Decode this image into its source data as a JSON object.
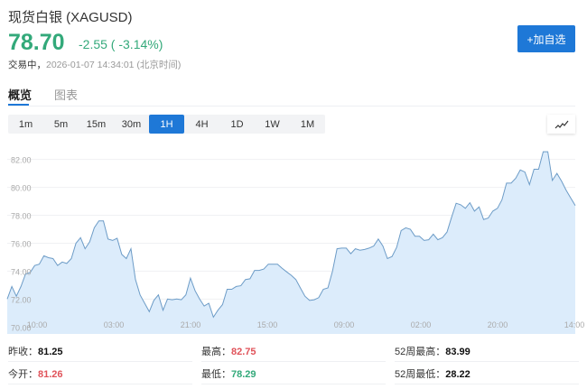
{
  "header": {
    "title": "现货白银 (XAGUSD)",
    "price": "78.70",
    "change": "-2.55 ( -3.14%)",
    "status_label": "交易中，",
    "timestamp": "2026-01-07 14:34:01 (北京时间)",
    "add_button": "+加自选"
  },
  "tabs": [
    {
      "label": "概览",
      "active": true
    },
    {
      "label": "图表",
      "active": false
    }
  ],
  "intervals": [
    {
      "label": "1m"
    },
    {
      "label": "5m"
    },
    {
      "label": "15m"
    },
    {
      "label": "30m"
    },
    {
      "label": "1H",
      "active": true
    },
    {
      "label": "4H"
    },
    {
      "label": "1D"
    },
    {
      "label": "1W"
    },
    {
      "label": "1M"
    }
  ],
  "colors": {
    "accent": "#1e78d7",
    "up": "#e0535a",
    "down": "#33a97a",
    "line": "#6d9cc7",
    "fill": "#dcecfb"
  },
  "chart_icon": "line-chart-icon",
  "chart_data": {
    "type": "area",
    "ylim": [
      69.5,
      83.4
    ],
    "y_ticks": [
      "70.00",
      "72.00",
      "74.00",
      "76.00",
      "78.00",
      "80.00",
      "82.00"
    ],
    "x_ticks": [
      "10:00",
      "03:00",
      "21:00",
      "15:00",
      "09:00",
      "02:00",
      "20:00",
      "14:00"
    ],
    "grid": true,
    "values": [
      72.0,
      72.9,
      72.2,
      72.9,
      73.8,
      73.9,
      74.4,
      74.5,
      75.1,
      74.96,
      74.9,
      74.4,
      74.65,
      74.55,
      74.9,
      76.0,
      76.4,
      75.6,
      76.1,
      77.1,
      77.6,
      77.6,
      76.3,
      76.2,
      76.35,
      75.2,
      74.9,
      75.6,
      73.4,
      72.3,
      71.7,
      71.1,
      71.9,
      72.3,
      71.2,
      72.0,
      71.95,
      72.0,
      71.95,
      72.3,
      73.5,
      72.6,
      72.0,
      71.5,
      71.7,
      70.7,
      71.2,
      71.6,
      72.7,
      72.7,
      72.9,
      72.95,
      73.4,
      73.45,
      74.05,
      74.05,
      74.15,
      74.5,
      74.5,
      74.5,
      74.2,
      73.95,
      73.7,
      73.4,
      72.8,
      72.2,
      71.9,
      71.95,
      72.1,
      72.7,
      72.8,
      74.0,
      75.6,
      75.65,
      75.65,
      75.25,
      75.6,
      75.5,
      75.55,
      75.65,
      75.8,
      76.3,
      75.8,
      74.9,
      75.05,
      75.7,
      76.9,
      77.1,
      77.0,
      76.5,
      76.5,
      76.2,
      76.25,
      76.65,
      76.25,
      76.4,
      76.8,
      77.85,
      78.86,
      78.75,
      78.5,
      78.9,
      78.3,
      78.6,
      77.7,
      77.8,
      78.3,
      78.5,
      79.1,
      80.3,
      80.3,
      80.65,
      81.25,
      81.1,
      80.2,
      81.3,
      81.3,
      82.55,
      82.55,
      80.5,
      81.0,
      80.45,
      79.8,
      79.25,
      78.7
    ]
  },
  "stats": [
    [
      {
        "label": "昨收：",
        "value": "81.25",
        "tone": "dark"
      },
      {
        "label": "最高：",
        "value": "82.75",
        "tone": "red"
      },
      {
        "label": "52周最高：",
        "value": "83.99",
        "tone": "dark"
      }
    ],
    [
      {
        "label": "今开：",
        "value": "81.26",
        "tone": "red"
      },
      {
        "label": "最低：",
        "value": "78.29",
        "tone": "green"
      },
      {
        "label": "52周最低：",
        "value": "28.22",
        "tone": "dark"
      }
    ]
  ]
}
